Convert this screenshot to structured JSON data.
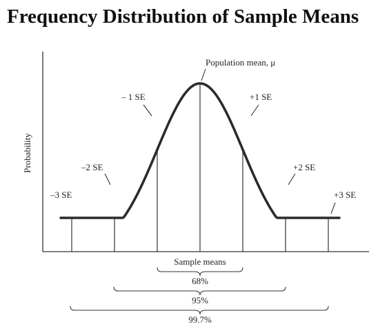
{
  "title": "Frequency Distribution of Sample Means",
  "axis": {
    "ylabel": "Probability",
    "xlabel": "Sample means"
  },
  "annotations": {
    "population_mean": "Population mean, μ",
    "minus3": "–3 SE",
    "minus2": "–2 SE",
    "minus1": "– 1 SE",
    "plus1": "+1 SE",
    "plus2": "+2 SE",
    "plus3": "+3 SE"
  },
  "ranges": {
    "one_se": "68%",
    "two_se": "95%",
    "three_se": "99.7%"
  },
  "colors": {
    "curve": "#2b2b2b",
    "lines": "#333333"
  }
}
